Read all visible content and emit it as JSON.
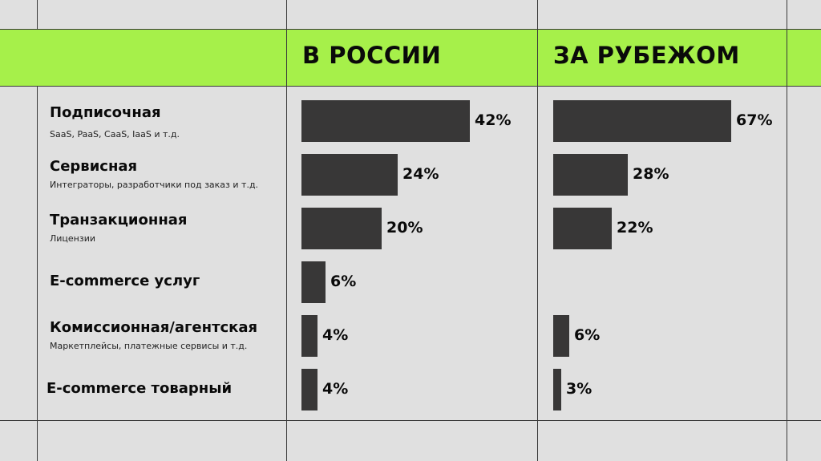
{
  "header": {
    "col_russia": "В РОССИИ",
    "col_abroad": "ЗА РУБЕЖОМ"
  },
  "colors": {
    "background": "#e0e0e0",
    "band": "#a6f04a",
    "bar": "#383737"
  },
  "chart_data": {
    "type": "bar",
    "orientation": "horizontal",
    "categories": [
      {
        "label": "Подписочная",
        "sub": "SaaS, PaaS, CaaS, IaaS и т.д."
      },
      {
        "label": "Сервисная",
        "sub": "Интеграторы, разработчики под заказ и т.д."
      },
      {
        "label": "Транзакционная",
        "sub": "Лицензии"
      },
      {
        "label": "E-commerce услуг",
        "sub": ""
      },
      {
        "label": "Комиссионная/агентская",
        "sub": "Маркетплейсы, платежные сервисы и т.д."
      },
      {
        "label": "E-commerce товарный",
        "sub": ""
      }
    ],
    "series": [
      {
        "name": "В РОССИИ",
        "values": [
          42,
          24,
          20,
          6,
          4,
          4
        ],
        "labels": [
          "42%",
          "24%",
          "20%",
          "6%",
          "4%",
          "4%"
        ]
      },
      {
        "name": "ЗА РУБЕЖОМ",
        "values": [
          67,
          28,
          22,
          null,
          6,
          3
        ],
        "labels": [
          "67%",
          "28%",
          "22%",
          "",
          "6%",
          "3%"
        ]
      }
    ],
    "unit": "%",
    "grid": false
  }
}
